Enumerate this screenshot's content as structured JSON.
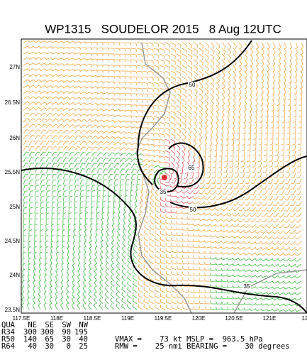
{
  "title": "WP1315   SOUDELOR 2015   8 Aug 12UTC",
  "lat_labels": [
    "27N",
    "26.5N",
    "26N",
    "25.5N",
    "25N",
    "24.5N",
    "24N",
    "23.5N"
  ],
  "lon_labels": [
    "117.5E",
    "118E",
    "118.5E",
    "119E",
    "119.5E",
    "120E",
    "120.5E",
    "121E",
    "12"
  ],
  "contour_labels": [
    "50",
    "65",
    "35",
    "50",
    "35"
  ],
  "table": {
    "header": [
      "QUA",
      "NE",
      "SE",
      "SW",
      "NW"
    ],
    "rows": [
      [
        "R34",
        "300",
        "300",
        "90",
        "195"
      ],
      [
        "R50",
        "140",
        "65",
        "30",
        "40"
      ],
      [
        "R64",
        "40",
        "30",
        "0",
        "25"
      ]
    ]
  },
  "summary": [
    "VMAX =    73 kt MSLP =  963.5 hPa",
    "RMW =    25 nmi BEARING =    30 degrees"
  ]
}
